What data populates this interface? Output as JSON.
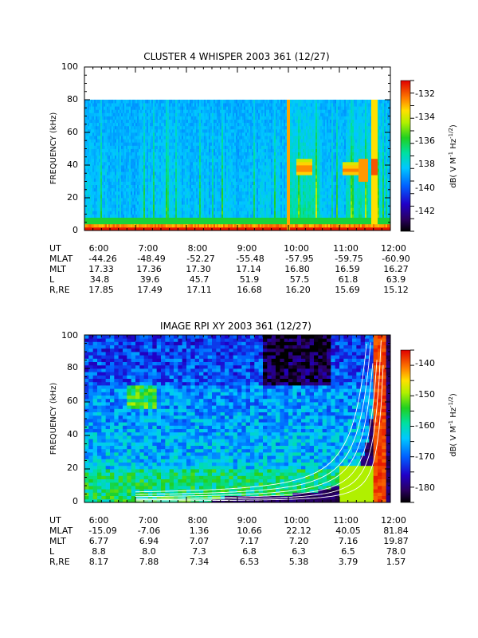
{
  "chart_data": [
    {
      "type": "heatmap",
      "title": "CLUSTER 4 WHISPER 2003 361 (12/27)",
      "ylabel": "FREQUENCY (kHz)",
      "xlabel": "",
      "ylim": [
        0,
        100
      ],
      "xlim": [
        "6:00",
        "12:00"
      ],
      "yticks": [
        "0",
        "20",
        "40",
        "60",
        "80",
        "100"
      ],
      "data_top_khz": 80,
      "colorbar": {
        "label": "dB( V M⁻¹ Hz⁻¹ᐟ²)",
        "label_parts": [
          "dB( V M",
          "-1",
          " Hz",
          "-1/2",
          ")"
        ],
        "range": [
          -143.5,
          -131.0
        ],
        "ticks": [
          "-132",
          "-134",
          "-136",
          "-138",
          "-140",
          "-142"
        ]
      },
      "ephemeris": {
        "rows": [
          {
            "label": "UT",
            "values": [
              "6:00",
              "7:00",
              "8:00",
              "9:00",
              "10:00",
              "11:00",
              "12:00"
            ]
          },
          {
            "label": "MLAT",
            "values": [
              "-44.26",
              "-48.49",
              "-52.27",
              "-55.48",
              "-57.95",
              "-59.75",
              "-60.90"
            ]
          },
          {
            "label": "MLT",
            "values": [
              "17.33",
              "17.36",
              "17.30",
              "17.14",
              "16.80",
              "16.59",
              "16.27"
            ]
          },
          {
            "label": "L",
            "values": [
              "34.8",
              "39.6",
              "45.7",
              "51.9",
              "57.5",
              "61.8",
              "63.9"
            ]
          },
          {
            "label": "R,RE",
            "values": [
              "17.85",
              "17.49",
              "17.11",
              "16.68",
              "16.20",
              "15.69",
              "15.12"
            ]
          }
        ]
      }
    },
    {
      "type": "heatmap",
      "title": "IMAGE RPI XY 2003 361 (12/27)",
      "ylabel": "FREQUENCY (kHz)",
      "xlabel": "",
      "ylim": [
        0,
        100
      ],
      "xlim": [
        "6:00",
        "12:00"
      ],
      "yticks": [
        "0",
        "20",
        "40",
        "60",
        "80",
        "100"
      ],
      "colorbar": {
        "label": "dB( V M⁻¹ Hz⁻¹ᐟ²)",
        "label_parts": [
          "dB( V M",
          "-1",
          " Hz",
          "-1/2",
          ")"
        ],
        "range": [
          -185,
          -136
        ],
        "ticks": [
          "-140",
          "-150",
          "-160",
          "-170",
          "-180"
        ]
      },
      "ephemeris": {
        "rows": [
          {
            "label": "UT",
            "values": [
              "6:00",
              "7:00",
              "8:00",
              "9:00",
              "10:00",
              "11:00",
              "12:00"
            ]
          },
          {
            "label": "MLAT",
            "values": [
              "-15.09",
              "-7.06",
              "1.36",
              "10.66",
              "22.12",
              "40.05",
              "81.84"
            ]
          },
          {
            "label": "MLT",
            "values": [
              "6.77",
              "6.94",
              "7.07",
              "7.17",
              "7.20",
              "7.16",
              "19.87"
            ]
          },
          {
            "label": "L",
            "values": [
              "8.8",
              "8.0",
              "7.3",
              "6.8",
              "6.3",
              "6.5",
              "78.0"
            ]
          },
          {
            "label": "R,RE",
            "values": [
              "8.17",
              "7.88",
              "7.34",
              "6.53",
              "5.38",
              "3.79",
              "1.57"
            ]
          }
        ]
      }
    }
  ]
}
